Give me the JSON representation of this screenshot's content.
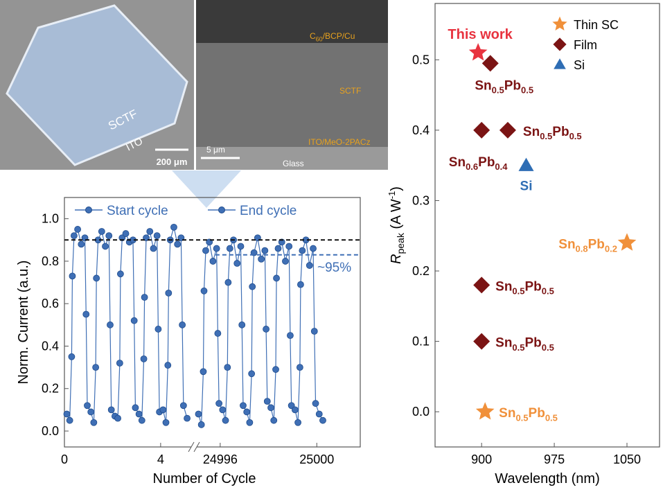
{
  "sem_images": {
    "top_view": {
      "film_label": "SCTF",
      "substrate_label": "ITO",
      "scale_bar": "200 μm"
    },
    "cross_section": {
      "top_layer_parts": [
        "C",
        "60",
        "/BCP/Cu"
      ],
      "film_label": "SCTF",
      "bottom_layer": "ITO/MeO-2PACz",
      "substrate": "Glass",
      "scale_bar": "5 μm"
    }
  },
  "chart_data": [
    {
      "type": "line",
      "x_label": "Number of Cycle",
      "y_label": "Norm. Current (a.u.)",
      "ylim": [
        -0.075,
        1.1
      ],
      "yticks": [
        {
          "value": 0,
          "label": "0.0"
        },
        0.2,
        0.4,
        0.6,
        0.8,
        {
          "value": 1,
          "label": "1.0"
        }
      ],
      "panels": [
        {
          "xlim": [
            0,
            5.3
          ],
          "xticks": [
            0,
            4
          ],
          "series": [
            {
              "name": "Start cycle",
              "color": "#3f6fb5",
              "x": [
                0.1,
                0.22,
                0.3,
                0.33,
                0.4,
                0.55,
                0.7,
                0.85,
                0.9,
                0.95,
                1.1,
                1.22,
                1.3,
                1.33,
                1.4,
                1.55,
                1.7,
                1.85,
                1.9,
                1.95,
                2.1,
                2.22,
                2.3,
                2.33,
                2.4,
                2.55,
                2.7,
                2.85,
                2.9,
                2.95,
                3.1,
                3.22,
                3.3,
                3.33,
                3.4,
                3.55,
                3.7,
                3.85,
                3.9,
                3.95,
                4.1,
                4.22,
                4.3,
                4.33,
                4.4,
                4.55,
                4.7,
                4.85,
                4.9,
                4.95,
                5.1
              ],
              "values": [
                0.08,
                0.05,
                0.35,
                0.73,
                0.92,
                0.95,
                0.88,
                0.91,
                0.55,
                0.12,
                0.09,
                0.04,
                0.3,
                0.72,
                0.9,
                0.94,
                0.87,
                0.92,
                0.5,
                0.1,
                0.07,
                0.06,
                0.32,
                0.74,
                0.91,
                0.93,
                0.89,
                0.9,
                0.52,
                0.11,
                0.08,
                0.05,
                0.34,
                0.63,
                0.91,
                0.94,
                0.86,
                0.92,
                0.48,
                0.09,
                0.1,
                0.04,
                0.31,
                0.65,
                0.9,
                0.96,
                0.88,
                0.91,
                0.5,
                0.12,
                0.06
              ]
            }
          ]
        },
        {
          "xlim": [
            24995,
            25001.8
          ],
          "xticks": [
            24996,
            25000
          ],
          "series": [
            {
              "name": "End cycle",
              "color": "#3f6fb5",
              "x": [
                24995.1,
                24995.22,
                24995.3,
                24995.33,
                24995.4,
                24995.55,
                24995.7,
                24995.85,
                24995.9,
                24995.95,
                24996.1,
                24996.22,
                24996.3,
                24996.33,
                24996.4,
                24996.55,
                24996.7,
                24996.85,
                24996.9,
                24996.95,
                24997.1,
                24997.22,
                24997.3,
                24997.33,
                24997.4,
                24997.55,
                24997.7,
                24997.85,
                24997.9,
                24997.95,
                24998.1,
                24998.22,
                24998.3,
                24998.33,
                24998.4,
                24998.55,
                24998.7,
                24998.85,
                24998.9,
                24998.95,
                24999.1,
                24999.22,
                24999.3,
                24999.33,
                24999.4,
                24999.55,
                24999.7,
                24999.85,
                24999.9,
                24999.95,
                25000.1,
                25000.25
              ],
              "values": [
                0.08,
                0.03,
                0.28,
                0.66,
                0.85,
                0.89,
                0.8,
                0.86,
                0.46,
                0.13,
                0.1,
                0.05,
                0.3,
                0.7,
                0.86,
                0.9,
                0.79,
                0.87,
                0.5,
                0.12,
                0.09,
                0.04,
                0.27,
                0.68,
                0.84,
                0.91,
                0.81,
                0.85,
                0.48,
                0.14,
                0.11,
                0.05,
                0.29,
                0.72,
                0.86,
                0.89,
                0.8,
                0.87,
                0.45,
                0.12,
                0.1,
                0.04,
                0.3,
                0.69,
                0.85,
                0.9,
                0.78,
                0.86,
                0.47,
                0.13,
                0.08,
                0.05
              ]
            }
          ]
        }
      ],
      "reference_lines": [
        {
          "value": 0.9,
          "color": "#111111"
        },
        {
          "value": 0.83,
          "color": "#3f6fb5",
          "x_from": 24995.8
        }
      ],
      "annotation": "~95%"
    },
    {
      "type": "scatter",
      "x_label": "Wavelength (nm)",
      "y_label_parts": [
        "R",
        "peak",
        " (A W",
        "-1",
        ")"
      ],
      "xlim": [
        852,
        1083.6
      ],
      "xticks": [
        900,
        975,
        1050
      ],
      "ylim": [
        -0.05,
        0.58
      ],
      "yticks": [
        {
          "value": 0,
          "label": "0.0"
        },
        0.1,
        0.2,
        0.3,
        0.4,
        0.5
      ],
      "highlight": {
        "label": "This work",
        "x": 896.4,
        "y": 0.51,
        "color": "#e8333f",
        "marker": "star"
      },
      "series": [
        {
          "name": "Thin SC",
          "color": "#f0903a",
          "marker": "star",
          "x": [
            1050,
            903.6
          ],
          "values": [
            0.24,
            0
          ],
          "labels": [
            [
              "Sn",
              "0.8",
              "Pb",
              "0.2"
            ],
            [
              "Sn",
              "0.5",
              "Pb",
              "0.5"
            ]
          ]
        },
        {
          "name": "Film",
          "color": "#7b1414",
          "marker": "diamond",
          "x": [
            909,
            900,
            927,
            900,
            900
          ],
          "values": [
            0.495,
            0.4,
            0.4,
            0.18,
            0.1
          ],
          "labels": [
            [
              "Sn",
              "0.5",
              "Pb",
              "0.5"
            ],
            [
              "Sn",
              "0.6",
              "Pb",
              "0.4"
            ],
            [
              "Sn",
              "0.5",
              "Pb",
              "0.5"
            ],
            [
              "Sn",
              "0.5",
              "Pb",
              "0.5"
            ],
            [
              "Sn",
              "0.5",
              "Pb",
              "0.5"
            ]
          ]
        },
        {
          "name": "Si",
          "color": "#2e6db4",
          "marker": "triangle",
          "x": [
            946
          ],
          "values": [
            0.35
          ],
          "labels": [
            [
              "Si"
            ]
          ]
        }
      ]
    }
  ]
}
